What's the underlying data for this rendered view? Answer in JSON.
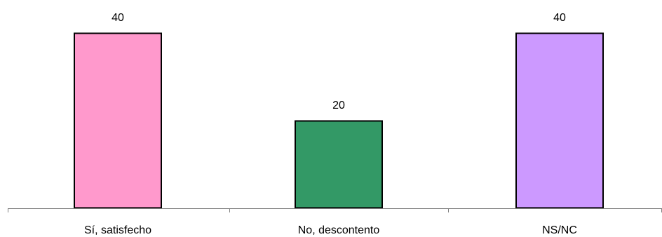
{
  "chart_data": {
    "type": "bar",
    "categories": [
      "Sí, satisfecho",
      "No, descontento",
      "NS/NC"
    ],
    "values": [
      40,
      20,
      40
    ],
    "data_labels": [
      "40",
      "20",
      "40"
    ],
    "colors": [
      "#FF99CC",
      "#339966",
      "#CC99FF"
    ],
    "title": "",
    "xlabel": "",
    "ylabel": "",
    "ylim": [
      0,
      40
    ],
    "grid": false,
    "legend": "none"
  }
}
